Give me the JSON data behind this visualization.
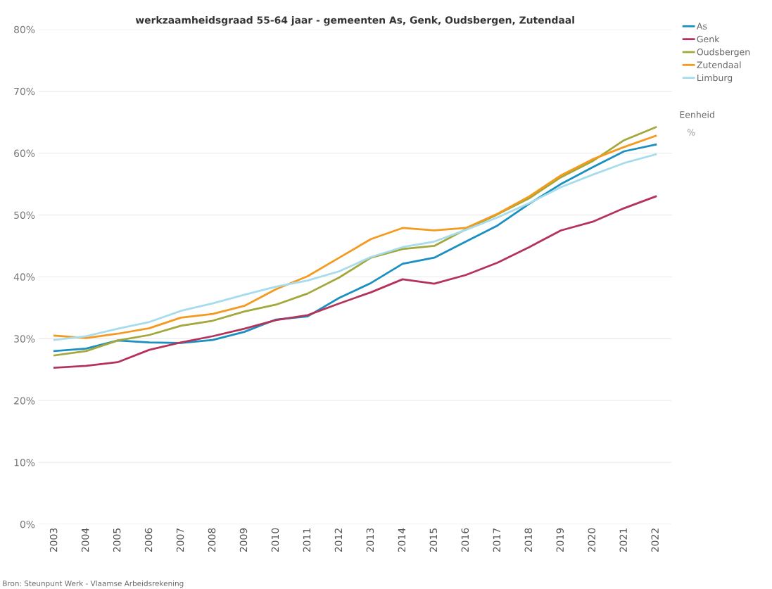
{
  "chart_data": {
    "type": "line",
    "title": "werkzaamheidsgraad 55-64 jaar - gemeenten As, Genk, Oudsbergen, Zutendaal",
    "categories": [
      "2003",
      "2004",
      "2005",
      "2006",
      "2007",
      "2008",
      "2009",
      "2010",
      "2011",
      "2012",
      "2013",
      "2014",
      "2015",
      "2016",
      "2017",
      "2018",
      "2019",
      "2020",
      "2021",
      "2022"
    ],
    "series": [
      {
        "name": "As",
        "color": "#1a8fc1",
        "values": [
          28.0,
          28.4,
          29.7,
          29.4,
          29.3,
          29.8,
          31.1,
          33.1,
          33.6,
          36.6,
          39.0,
          42.1,
          43.1,
          45.7,
          48.3,
          51.8,
          55.0,
          57.7,
          60.3,
          61.4
        ]
      },
      {
        "name": "Genk",
        "color": "#b5335a",
        "values": [
          25.3,
          25.6,
          26.2,
          28.2,
          29.4,
          30.4,
          31.6,
          33.0,
          33.8,
          35.7,
          37.5,
          39.6,
          38.9,
          40.3,
          42.3,
          44.8,
          47.5,
          48.9,
          51.1,
          53.0
        ]
      },
      {
        "name": "Oudsbergen",
        "color": "#a3a83a",
        "values": [
          27.3,
          28.0,
          29.7,
          30.6,
          32.1,
          32.9,
          34.4,
          35.5,
          37.3,
          39.9,
          43.1,
          44.5,
          45.0,
          47.7,
          50.1,
          52.7,
          56.1,
          58.7,
          62.1,
          64.2
        ]
      },
      {
        "name": "Zutendaal",
        "color": "#f39a1f",
        "values": [
          30.5,
          30.1,
          30.8,
          31.7,
          33.4,
          34.0,
          35.3,
          38.0,
          40.1,
          43.1,
          46.1,
          47.9,
          47.5,
          47.9,
          50.2,
          53.0,
          56.4,
          59.0,
          61.0,
          62.8
        ]
      },
      {
        "name": "Limburg",
        "color": "#a6dcec",
        "values": [
          29.8,
          30.4,
          31.6,
          32.7,
          34.5,
          35.7,
          37.1,
          38.4,
          39.4,
          40.9,
          43.2,
          44.8,
          45.7,
          47.6,
          49.6,
          51.9,
          54.5,
          56.5,
          58.4,
          59.8
        ]
      }
    ],
    "ylim": [
      0,
      80
    ],
    "yticks": [
      {
        "value": 0,
        "label": "0%"
      },
      {
        "value": 10,
        "label": "10%"
      },
      {
        "value": 20,
        "label": "20%"
      },
      {
        "value": 30,
        "label": "30%"
      },
      {
        "value": 40,
        "label": "40%"
      },
      {
        "value": 50,
        "label": "50%"
      },
      {
        "value": 60,
        "label": "60%"
      },
      {
        "value": 70,
        "label": "70%"
      },
      {
        "value": 80,
        "label": "80%"
      }
    ],
    "grid": "y",
    "legend": "top right",
    "marker": "none",
    "line_style": "solid",
    "legend_title": "Eenheid",
    "annotations": [
      "%",
      "Bron: Steunpunt Werk - Vlaamse Arbeidsrekening"
    ]
  }
}
